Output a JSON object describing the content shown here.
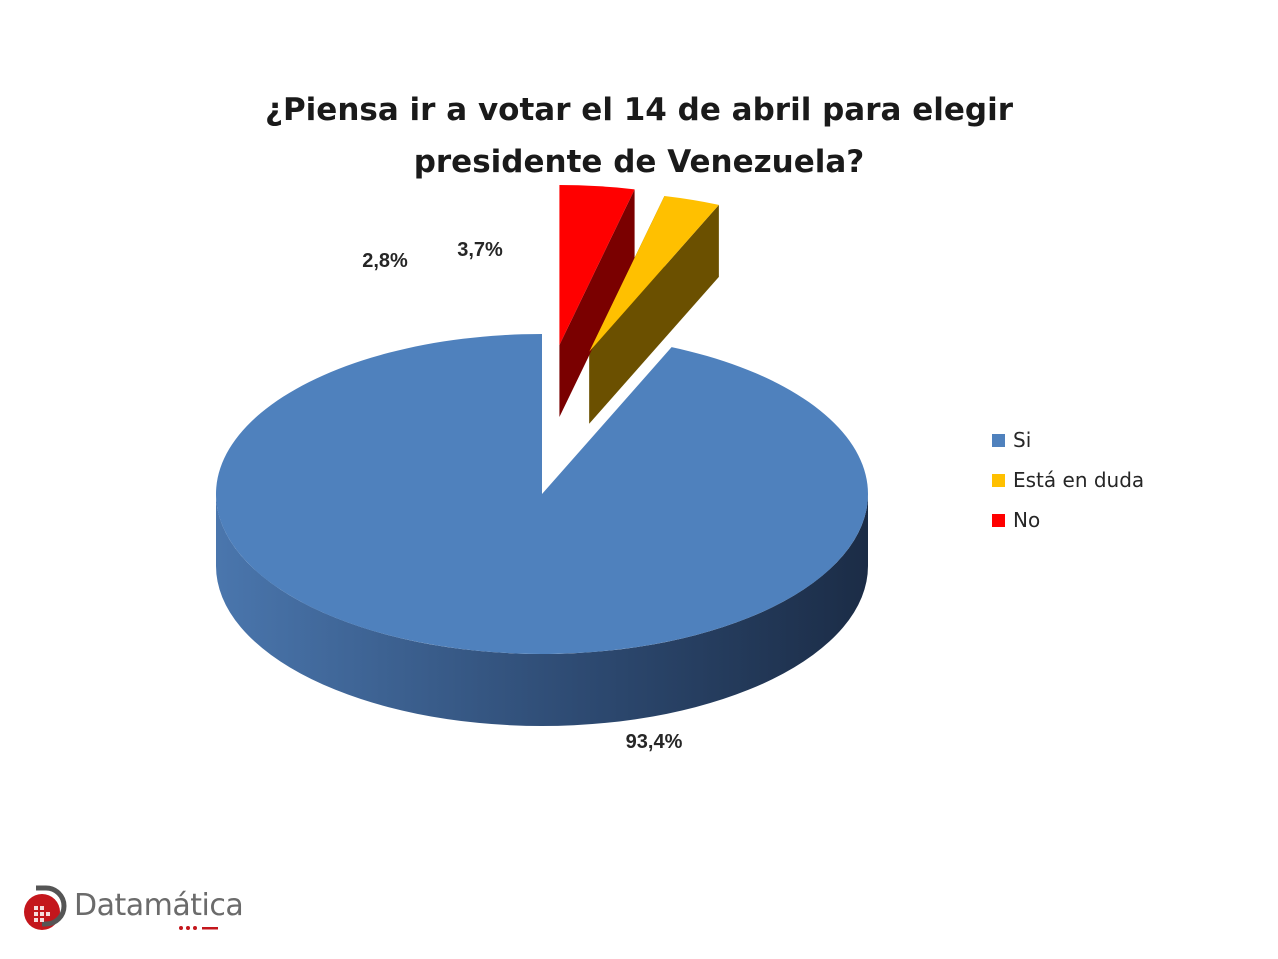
{
  "chart_data": {
    "type": "pie",
    "title_lines": [
      "¿Piensa ir a votar el 14 de abril para elegir",
      "presidente de Venezuela?"
    ],
    "slices": [
      {
        "name": "Si",
        "value": 93.4,
        "label": "93,4%",
        "color": "#4f81bd",
        "exploded": false
      },
      {
        "name": "Está en duda",
        "value": 2.8,
        "label": "2,8%",
        "color": "#ffc000",
        "exploded": true
      },
      {
        "name": "No",
        "value": 3.7,
        "label": "3,7%",
        "color": "#ff0000",
        "exploded": true
      }
    ],
    "three_d": true,
    "legend_position": "right"
  },
  "logo": {
    "text": "Datamática"
  }
}
